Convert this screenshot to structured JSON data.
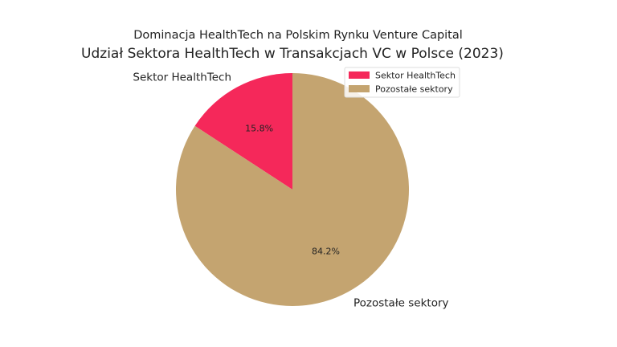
{
  "chart_data": {
    "type": "pie",
    "suptitle": "Dominacja HealthTech na Polskim Rynku Venture Capital",
    "title": "Udział Sektora HealthTech w Transakcjach VC w Polsce (2023)",
    "categories": [
      "Sektor HealthTech",
      "Pozostałe sektory"
    ],
    "values": [
      15.8,
      84.2
    ],
    "value_labels": [
      "15.8%",
      "84.2%"
    ],
    "colors": [
      "#F5285A",
      "#C4A470"
    ],
    "start_angle_deg": 90,
    "direction": "counterclockwise",
    "legend": {
      "placement": "upper-right",
      "entries": [
        "Sektor HealthTech",
        "Pozostałe sektory"
      ]
    }
  }
}
